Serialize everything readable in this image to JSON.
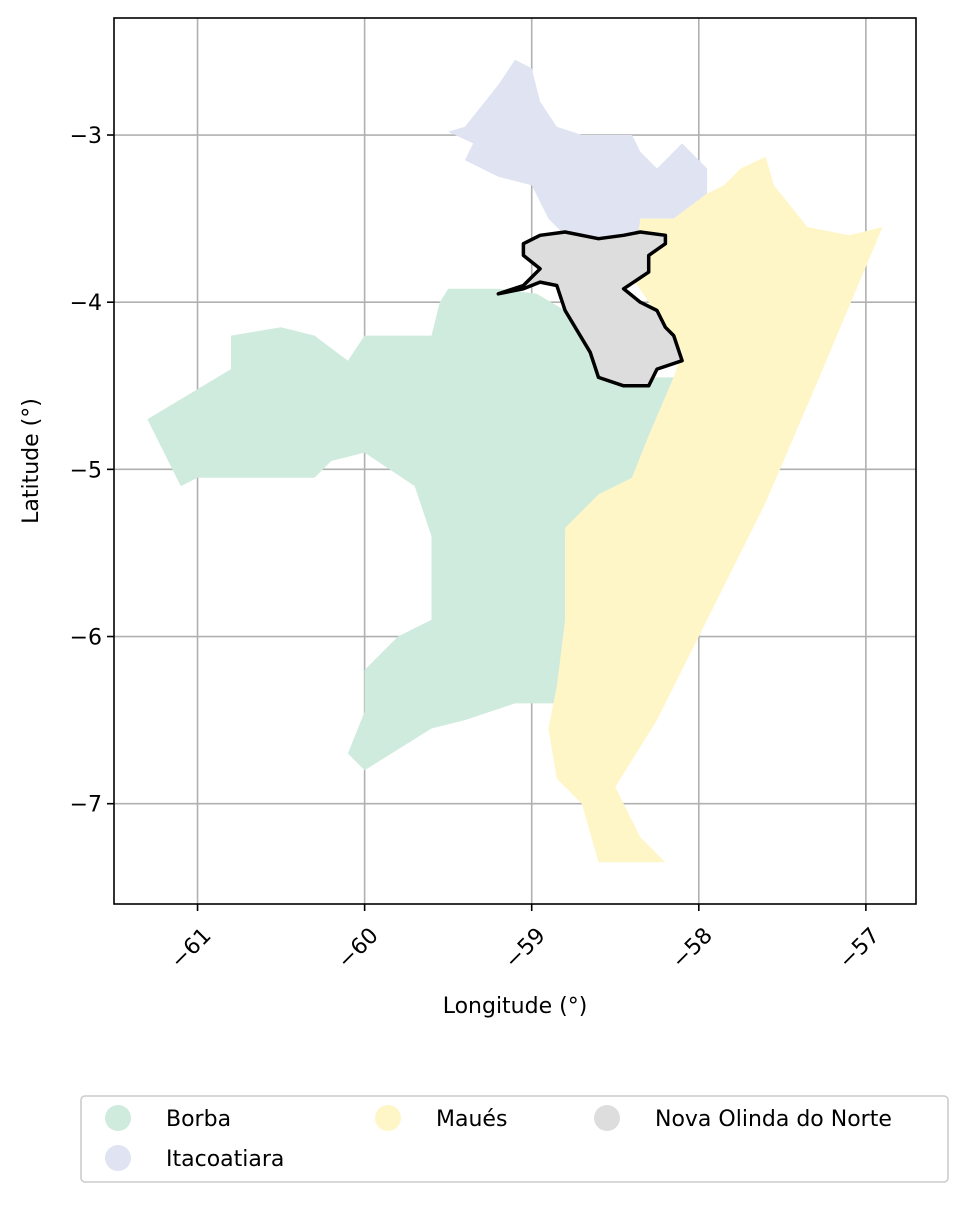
{
  "map": {
    "xlabel": "Longitude (°)",
    "ylabel": "Latitude (°)",
    "x_ticks": [
      {
        "value": -61,
        "label": "−61"
      },
      {
        "value": -60,
        "label": "−60"
      },
      {
        "value": -59,
        "label": "−59"
      },
      {
        "value": -58,
        "label": "−58"
      },
      {
        "value": -57,
        "label": "−57"
      }
    ],
    "y_ticks": [
      {
        "value": -3,
        "label": "−3"
      },
      {
        "value": -4,
        "label": "−4"
      },
      {
        "value": -5,
        "label": "−5"
      },
      {
        "value": -6,
        "label": "−6"
      },
      {
        "value": -7,
        "label": "−7"
      }
    ],
    "xlim": [
      -61.5,
      -56.7
    ],
    "ylim": [
      -7.6,
      -2.3
    ],
    "grid": true,
    "legend_position": "bottom",
    "regions": [
      {
        "name": "Borba",
        "color": "#cfebdd",
        "highlight": false,
        "outline": [
          [
            -61.3,
            -4.7
          ],
          [
            -60.8,
            -4.4
          ],
          [
            -60.8,
            -4.2
          ],
          [
            -60.5,
            -4.15
          ],
          [
            -60.3,
            -4.2
          ],
          [
            -60.1,
            -4.35
          ],
          [
            -60.0,
            -4.2
          ],
          [
            -59.6,
            -4.2
          ],
          [
            -59.55,
            -4.0
          ],
          [
            -59.5,
            -3.92
          ],
          [
            -59.2,
            -3.92
          ],
          [
            -58.97,
            -3.95
          ],
          [
            -58.8,
            -4.05
          ],
          [
            -58.65,
            -4.3
          ],
          [
            -58.45,
            -4.5
          ],
          [
            -58.25,
            -4.45
          ],
          [
            -58.15,
            -4.45
          ],
          [
            -58.3,
            -4.8
          ],
          [
            -58.4,
            -5.05
          ],
          [
            -58.7,
            -5.25
          ],
          [
            -58.8,
            -5.4
          ],
          [
            -58.8,
            -6.1
          ],
          [
            -58.85,
            -6.4
          ],
          [
            -59.1,
            -6.4
          ],
          [
            -59.4,
            -6.5
          ],
          [
            -59.6,
            -6.55
          ],
          [
            -60.0,
            -6.8
          ],
          [
            -60.1,
            -6.7
          ],
          [
            -60.0,
            -6.45
          ],
          [
            -60.0,
            -6.2
          ],
          [
            -59.8,
            -6.0
          ],
          [
            -59.6,
            -5.9
          ],
          [
            -59.6,
            -5.4
          ],
          [
            -59.7,
            -5.1
          ],
          [
            -60.0,
            -4.9
          ],
          [
            -60.2,
            -4.95
          ],
          [
            -60.3,
            -5.05
          ],
          [
            -61.0,
            -5.05
          ],
          [
            -61.1,
            -5.1
          ],
          [
            -61.3,
            -4.7
          ]
        ]
      },
      {
        "name": "Itacoatiara",
        "color": "#dfe3f2",
        "highlight": false,
        "outline": [
          [
            -59.5,
            -2.98
          ],
          [
            -59.4,
            -2.95
          ],
          [
            -59.2,
            -2.7
          ],
          [
            -59.1,
            -2.55
          ],
          [
            -59.0,
            -2.6
          ],
          [
            -58.95,
            -2.8
          ],
          [
            -58.85,
            -2.95
          ],
          [
            -58.7,
            -3.0
          ],
          [
            -58.4,
            -3.0
          ],
          [
            -58.35,
            -3.1
          ],
          [
            -58.25,
            -3.2
          ],
          [
            -58.1,
            -3.05
          ],
          [
            -57.95,
            -3.2
          ],
          [
            -57.95,
            -3.35
          ],
          [
            -58.15,
            -3.5
          ],
          [
            -58.35,
            -3.5
          ],
          [
            -58.35,
            -3.6
          ],
          [
            -58.6,
            -3.7
          ],
          [
            -58.8,
            -3.6
          ],
          [
            -58.9,
            -3.5
          ],
          [
            -59.0,
            -3.3
          ],
          [
            -59.2,
            -3.25
          ],
          [
            -59.4,
            -3.15
          ],
          [
            -59.35,
            -3.05
          ],
          [
            -59.5,
            -2.98
          ]
        ]
      },
      {
        "name": "Maués",
        "color": "#fff6c8",
        "highlight": false,
        "outline": [
          [
            -58.35,
            -3.5
          ],
          [
            -58.15,
            -3.5
          ],
          [
            -57.95,
            -3.35
          ],
          [
            -57.85,
            -3.3
          ],
          [
            -57.75,
            -3.2
          ],
          [
            -57.6,
            -3.13
          ],
          [
            -57.55,
            -3.3
          ],
          [
            -57.35,
            -3.55
          ],
          [
            -57.1,
            -3.6
          ],
          [
            -56.9,
            -3.55
          ],
          [
            -57.3,
            -4.5
          ],
          [
            -57.6,
            -5.2
          ],
          [
            -58.0,
            -6.0
          ],
          [
            -58.25,
            -6.5
          ],
          [
            -58.5,
            -6.9
          ],
          [
            -58.35,
            -7.2
          ],
          [
            -58.2,
            -7.35
          ],
          [
            -58.6,
            -7.35
          ],
          [
            -58.7,
            -7.0
          ],
          [
            -58.85,
            -6.85
          ],
          [
            -58.9,
            -6.55
          ],
          [
            -58.85,
            -6.3
          ],
          [
            -58.8,
            -5.9
          ],
          [
            -58.8,
            -5.35
          ],
          [
            -58.6,
            -5.15
          ],
          [
            -58.4,
            -5.05
          ],
          [
            -58.3,
            -4.8
          ],
          [
            -58.15,
            -4.45
          ],
          [
            -58.1,
            -4.3
          ],
          [
            -58.3,
            -4.0
          ],
          [
            -58.4,
            -3.85
          ],
          [
            -58.35,
            -3.5
          ]
        ]
      },
      {
        "name": "Nova Olinda do Norte",
        "color": "#dddddd",
        "highlight": true,
        "outline": [
          [
            -59.2,
            -3.95
          ],
          [
            -59.05,
            -3.9
          ],
          [
            -58.95,
            -3.8
          ],
          [
            -59.05,
            -3.72
          ],
          [
            -59.05,
            -3.65
          ],
          [
            -58.95,
            -3.6
          ],
          [
            -58.8,
            -3.58
          ],
          [
            -58.6,
            -3.62
          ],
          [
            -58.45,
            -3.6
          ],
          [
            -58.35,
            -3.58
          ],
          [
            -58.2,
            -3.6
          ],
          [
            -58.2,
            -3.65
          ],
          [
            -58.3,
            -3.72
          ],
          [
            -58.3,
            -3.82
          ],
          [
            -58.45,
            -3.92
          ],
          [
            -58.35,
            -4.0
          ],
          [
            -58.25,
            -4.05
          ],
          [
            -58.2,
            -4.15
          ],
          [
            -58.15,
            -4.2
          ],
          [
            -58.1,
            -4.35
          ],
          [
            -58.25,
            -4.4
          ],
          [
            -58.3,
            -4.5
          ],
          [
            -58.45,
            -4.5
          ],
          [
            -58.6,
            -4.45
          ],
          [
            -58.65,
            -4.3
          ],
          [
            -58.8,
            -4.05
          ],
          [
            -58.85,
            -3.9
          ],
          [
            -58.95,
            -3.88
          ],
          [
            -59.05,
            -3.92
          ],
          [
            -59.2,
            -3.95
          ]
        ]
      }
    ],
    "legend": {
      "items": [
        {
          "label": "Borba",
          "color": "#cfebdd"
        },
        {
          "label": "Itacoatiara",
          "color": "#dfe3f2"
        },
        {
          "label": "Maués",
          "color": "#fff6c8"
        },
        {
          "label": "Nova Olinda do Norte",
          "color": "#dddddd"
        }
      ]
    }
  }
}
